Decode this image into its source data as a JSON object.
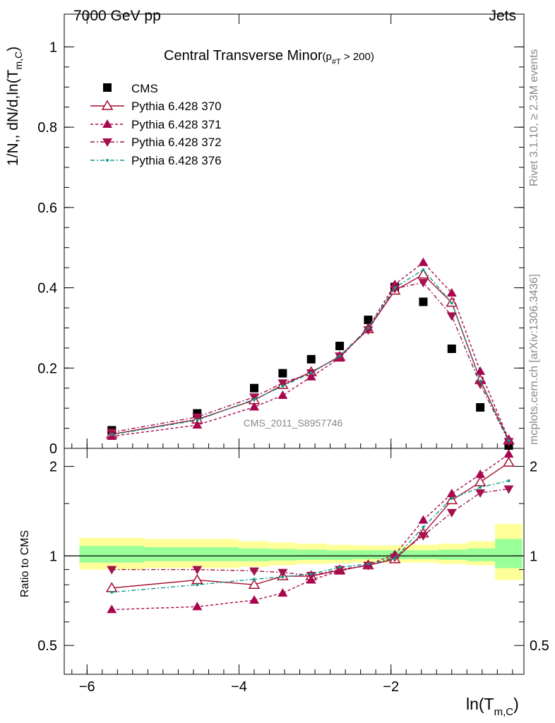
{
  "header": {
    "left": "7000 GeV pp",
    "right": "Jets"
  },
  "side": {
    "rivet": "Rivet 3.1.10, ≥ 2.3M events",
    "mcplots": "mcplots.cern.ch [arXiv:1306.3436]"
  },
  "colors": {
    "cms": "#000000",
    "p370": "#a50b2c",
    "p371": "#a8064f",
    "p372": "#a3124e",
    "p376": "#0f9a8c",
    "band_outer": "#ffff99",
    "band_inner": "#99ff99"
  },
  "chart_data": [
    {
      "type": "scatter",
      "title_main": "Central Transverse Minor",
      "title_sub": "(p",
      "title_sub_idx": "#T",
      "title_sub_tail": "  > 200)",
      "ylabel_main": "1/N",
      "ylabel_mid": ",, dN/d,ln(T",
      "ylabel_sub": "m,C",
      "ylabel_end": ")",
      "watermark": "CMS_2011_S8957746",
      "xlim": [
        -6.3,
        -0.25
      ],
      "ylim": [
        0,
        1.05
      ],
      "yticks": [
        0,
        0.2,
        0.4,
        0.6,
        0.8,
        1
      ],
      "ytick_labels": [
        "0",
        "0.2",
        "0.4",
        "0.6",
        "0.8",
        "1"
      ],
      "legend_position": "top-left",
      "series": [
        {
          "name": "CMS",
          "marker": "square",
          "x": [
            -5.675,
            -4.55,
            -3.8,
            -3.425,
            -3.05,
            -2.675,
            -2.3,
            -1.95,
            -1.575,
            -1.2,
            -0.825,
            -0.45
          ],
          "y": [
            0.045,
            0.087,
            0.15,
            0.187,
            0.222,
            0.255,
            0.32,
            0.402,
            0.365,
            0.248,
            0.102,
            0.007
          ]
        },
        {
          "name": "Pythia 6.428 370",
          "marker": "triangle-up-open",
          "x": [
            -5.675,
            -4.55,
            -3.8,
            -3.425,
            -3.05,
            -2.675,
            -2.3,
            -1.95,
            -1.575,
            -1.2,
            -0.825,
            -0.45
          ],
          "y": [
            0.035,
            0.072,
            0.12,
            0.158,
            0.19,
            0.228,
            0.297,
            0.393,
            0.433,
            0.363,
            0.17,
            0.02
          ]
        },
        {
          "name": "Pythia 6.428 371",
          "marker": "triangle-up",
          "x": [
            -5.675,
            -4.55,
            -3.8,
            -3.425,
            -3.05,
            -2.675,
            -2.3,
            -1.95,
            -1.575,
            -1.2,
            -0.825,
            -0.45
          ],
          "y": [
            0.03,
            0.058,
            0.103,
            0.132,
            0.178,
            0.225,
            0.3,
            0.408,
            0.463,
            0.387,
            0.192,
            0.022
          ]
        },
        {
          "name": "Pythia 6.428 372",
          "marker": "triangle-down",
          "x": [
            -5.675,
            -4.55,
            -3.8,
            -3.425,
            -3.05,
            -2.675,
            -2.3,
            -1.95,
            -1.575,
            -1.2,
            -0.825,
            -0.45
          ],
          "y": [
            0.04,
            0.078,
            0.128,
            0.163,
            0.188,
            0.23,
            0.295,
            0.398,
            0.413,
            0.33,
            0.16,
            0.017
          ]
        },
        {
          "name": "Pythia 6.428 376",
          "marker": "dot",
          "x": [
            -5.675,
            -4.55,
            -3.8,
            -3.425,
            -3.05,
            -2.675,
            -2.3,
            -1.95,
            -1.575,
            -1.2,
            -0.825,
            -0.45
          ],
          "y": [
            0.034,
            0.07,
            0.122,
            0.155,
            0.188,
            0.23,
            0.3,
            0.4,
            0.445,
            0.362,
            0.168,
            0.019
          ]
        }
      ]
    },
    {
      "type": "line",
      "ylabel": "Ratio to CMS",
      "xlabel_main": "ln(T",
      "xlabel_sub": "m,C",
      "xlabel_end": ")",
      "xlim": [
        -6.3,
        -0.25
      ],
      "ylim": [
        0.4,
        2.3
      ],
      "log_y": true,
      "xticks": [
        -6,
        -4,
        -2
      ],
      "xtick_labels": [
        "−6",
        "−4",
        "−2"
      ],
      "yticks": [
        0.5,
        1,
        2
      ],
      "ytick_labels": [
        "0.5",
        "1",
        "2"
      ],
      "band_bins": [
        {
          "x0": -6.1,
          "x1": -5.25,
          "outer": [
            0.9,
            1.15
          ],
          "inner": [
            0.95,
            1.08
          ]
        },
        {
          "x0": -5.25,
          "x1": -4.0,
          "outer": [
            0.91,
            1.14
          ],
          "inner": [
            0.96,
            1.07
          ]
        },
        {
          "x0": -4.0,
          "x1": -3.6,
          "outer": [
            0.92,
            1.12
          ],
          "inner": [
            0.96,
            1.06
          ]
        },
        {
          "x0": -3.6,
          "x1": -3.25,
          "outer": [
            0.93,
            1.11
          ],
          "inner": [
            0.965,
            1.055
          ]
        },
        {
          "x0": -3.25,
          "x1": -2.85,
          "outer": [
            0.94,
            1.1
          ],
          "inner": [
            0.97,
            1.05
          ]
        },
        {
          "x0": -2.85,
          "x1": -2.5,
          "outer": [
            0.945,
            1.09
          ],
          "inner": [
            0.97,
            1.045
          ]
        },
        {
          "x0": -2.5,
          "x1": -2.12,
          "outer": [
            0.95,
            1.085
          ],
          "inner": [
            0.975,
            1.045
          ]
        },
        {
          "x0": -2.12,
          "x1": -1.75,
          "outer": [
            0.95,
            1.085
          ],
          "inner": [
            0.975,
            1.045
          ]
        },
        {
          "x0": -1.75,
          "x1": -1.38,
          "outer": [
            0.95,
            1.09
          ],
          "inner": [
            0.975,
            1.045
          ]
        },
        {
          "x0": -1.38,
          "x1": -1.0,
          "outer": [
            0.94,
            1.1
          ],
          "inner": [
            0.97,
            1.05
          ]
        },
        {
          "x0": -1.0,
          "x1": -0.63,
          "outer": [
            0.93,
            1.12
          ],
          "inner": [
            0.96,
            1.06
          ]
        },
        {
          "x0": -0.63,
          "x1": -0.27,
          "outer": [
            0.83,
            1.28
          ],
          "inner": [
            0.91,
            1.14
          ]
        }
      ],
      "series": [
        {
          "name": "Pythia 6.428 370",
          "marker": "triangle-up-open",
          "x": [
            -5.675,
            -4.55,
            -3.8,
            -3.425,
            -3.05,
            -2.675,
            -2.3,
            -1.95,
            -1.575,
            -1.2,
            -0.825,
            -0.45
          ],
          "y": [
            0.78,
            0.83,
            0.8,
            0.855,
            0.855,
            0.895,
            0.93,
            0.975,
            1.19,
            1.54,
            1.77,
            2.06
          ]
        },
        {
          "name": "Pythia 6.428 371",
          "marker": "triangle-up",
          "x": [
            -5.675,
            -4.55,
            -3.8,
            -3.425,
            -3.05,
            -2.675,
            -2.3,
            -1.95,
            -1.575,
            -1.2,
            -0.825,
            -0.45
          ],
          "y": [
            0.66,
            0.675,
            0.71,
            0.75,
            0.83,
            0.89,
            0.935,
            1.01,
            1.32,
            1.62,
            1.88,
            2.2
          ]
        },
        {
          "name": "Pythia 6.428 372",
          "marker": "triangle-down",
          "x": [
            -5.675,
            -4.55,
            -3.8,
            -3.425,
            -3.05,
            -2.675,
            -2.3,
            -1.95,
            -1.575,
            -1.2,
            -0.825,
            -0.45
          ],
          "y": [
            0.9,
            0.9,
            0.89,
            0.88,
            0.86,
            0.9,
            0.93,
            0.99,
            1.17,
            1.4,
            1.63,
            1.68
          ]
        },
        {
          "name": "Pythia 6.428 376",
          "marker": "dot",
          "x": [
            -5.675,
            -4.55,
            -3.8,
            -3.425,
            -3.05,
            -2.675,
            -2.3,
            -1.95,
            -1.575,
            -1.2,
            -0.825,
            -0.45
          ],
          "y": [
            0.755,
            0.8,
            0.835,
            0.85,
            0.87,
            0.915,
            0.94,
            0.98,
            1.25,
            1.56,
            1.7,
            1.79
          ]
        }
      ]
    }
  ]
}
